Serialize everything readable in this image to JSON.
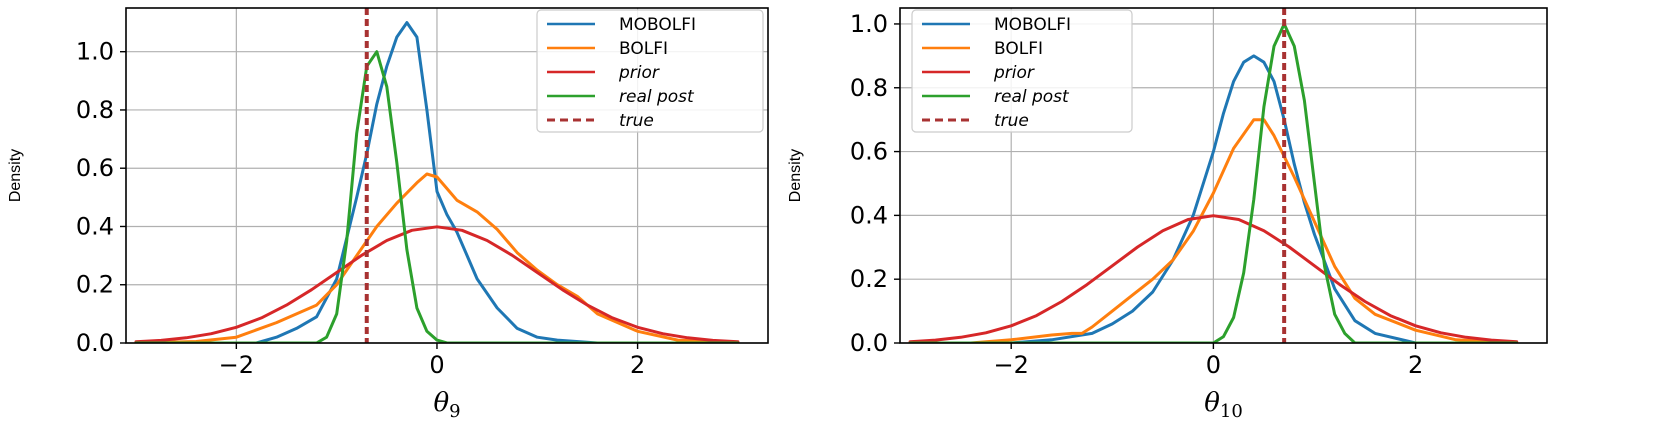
{
  "colors": {
    "MOBOLFI": "#1f77b4",
    "BOLFI": "#ff7f0e",
    "prior": "#d62728",
    "real post": "#2ca02c",
    "true": "#a83232"
  },
  "chart_data": [
    {
      "type": "line",
      "xlabel": "θ9",
      "ylabel": "Density",
      "xlim": [
        -3.1,
        3.3
      ],
      "ylim": [
        0,
        1.15
      ],
      "xticks": [
        -2,
        0,
        2
      ],
      "xtick_labels": [
        "−2",
        "0",
        "2"
      ],
      "yticks": [
        0.0,
        0.2,
        0.4,
        0.6,
        0.8,
        1.0
      ],
      "ytick_labels": [
        "0.0",
        "0.2",
        "0.4",
        "0.6",
        "0.8",
        "1.0"
      ],
      "grid": true,
      "legend_position": "top-right",
      "true_value": -0.7,
      "series": [
        {
          "name": "MOBOLFI",
          "x": [
            -3.0,
            -1.8,
            -1.6,
            -1.4,
            -1.2,
            -1.0,
            -0.8,
            -0.7,
            -0.6,
            -0.5,
            -0.4,
            -0.3,
            -0.2,
            -0.1,
            0.0,
            0.1,
            0.2,
            0.3,
            0.4,
            0.6,
            0.8,
            1.0,
            1.2,
            1.6,
            3.0
          ],
          "y": [
            0.0,
            0.0,
            0.02,
            0.05,
            0.09,
            0.22,
            0.5,
            0.65,
            0.82,
            0.95,
            1.05,
            1.1,
            1.05,
            0.8,
            0.52,
            0.44,
            0.38,
            0.3,
            0.22,
            0.12,
            0.05,
            0.02,
            0.01,
            0.0,
            0.0
          ]
        },
        {
          "name": "BOLFI",
          "x": [
            -3.0,
            -2.4,
            -2.0,
            -1.6,
            -1.4,
            -1.2,
            -1.0,
            -0.8,
            -0.6,
            -0.4,
            -0.2,
            -0.1,
            0.0,
            0.1,
            0.2,
            0.4,
            0.6,
            0.8,
            1.0,
            1.2,
            1.4,
            1.6,
            2.0,
            2.4,
            3.0
          ],
          "y": [
            0.0,
            0.005,
            0.02,
            0.07,
            0.1,
            0.13,
            0.2,
            0.3,
            0.4,
            0.48,
            0.55,
            0.58,
            0.57,
            0.53,
            0.49,
            0.45,
            0.39,
            0.31,
            0.25,
            0.2,
            0.16,
            0.1,
            0.04,
            0.01,
            0.0
          ]
        },
        {
          "name": "prior",
          "x": [
            -3.0,
            -2.75,
            -2.5,
            -2.25,
            -2.0,
            -1.75,
            -1.5,
            -1.25,
            -1.0,
            -0.75,
            -0.5,
            -0.25,
            0.0,
            0.25,
            0.5,
            0.75,
            1.0,
            1.25,
            1.5,
            1.75,
            2.0,
            2.25,
            2.5,
            2.75,
            3.0
          ],
          "y": [
            0.004,
            0.009,
            0.018,
            0.032,
            0.054,
            0.086,
            0.13,
            0.183,
            0.242,
            0.301,
            0.352,
            0.387,
            0.399,
            0.387,
            0.352,
            0.301,
            0.242,
            0.183,
            0.13,
            0.086,
            0.054,
            0.032,
            0.018,
            0.009,
            0.004
          ]
        },
        {
          "name": "real post",
          "x": [
            -3.0,
            -1.2,
            -1.1,
            -1.0,
            -0.9,
            -0.8,
            -0.7,
            -0.6,
            -0.5,
            -0.4,
            -0.3,
            -0.2,
            -0.1,
            0.0,
            0.1,
            0.2,
            3.0
          ],
          "y": [
            0.0,
            0.0,
            0.02,
            0.1,
            0.35,
            0.72,
            0.95,
            1.0,
            0.88,
            0.62,
            0.32,
            0.12,
            0.04,
            0.01,
            0.0,
            0.0,
            0.0
          ]
        }
      ]
    },
    {
      "type": "line",
      "xlabel": "θ10",
      "ylabel": "Density",
      "xlim": [
        -3.1,
        3.3
      ],
      "ylim": [
        0,
        1.05
      ],
      "xticks": [
        -2,
        0,
        2
      ],
      "xtick_labels": [
        "−2",
        "0",
        "2"
      ],
      "yticks": [
        0.0,
        0.2,
        0.4,
        0.6,
        0.8,
        1.0
      ],
      "ytick_labels": [
        "0.0",
        "0.2",
        "0.4",
        "0.6",
        "0.8",
        "1.0"
      ],
      "grid": true,
      "legend_position": "top-left",
      "true_value": 0.7,
      "series": [
        {
          "name": "MOBOLFI",
          "x": [
            -3.0,
            -2.0,
            -1.6,
            -1.2,
            -1.0,
            -0.8,
            -0.6,
            -0.4,
            -0.2,
            0.0,
            0.1,
            0.2,
            0.3,
            0.4,
            0.5,
            0.6,
            0.7,
            0.8,
            0.9,
            1.0,
            1.2,
            1.4,
            1.6,
            2.0,
            3.0
          ],
          "y": [
            0.0,
            0.0,
            0.01,
            0.03,
            0.06,
            0.1,
            0.16,
            0.26,
            0.4,
            0.6,
            0.72,
            0.82,
            0.88,
            0.9,
            0.88,
            0.82,
            0.7,
            0.56,
            0.44,
            0.34,
            0.17,
            0.07,
            0.03,
            0.0,
            0.0
          ]
        },
        {
          "name": "BOLFI",
          "x": [
            -3.0,
            -2.4,
            -2.0,
            -1.6,
            -1.4,
            -1.3,
            -1.2,
            -1.0,
            -0.8,
            -0.6,
            -0.4,
            -0.2,
            0.0,
            0.2,
            0.4,
            0.5,
            0.6,
            0.8,
            1.0,
            1.2,
            1.4,
            1.6,
            2.0,
            2.4,
            3.0
          ],
          "y": [
            0.0,
            0.0,
            0.01,
            0.025,
            0.03,
            0.03,
            0.05,
            0.1,
            0.15,
            0.2,
            0.26,
            0.35,
            0.47,
            0.61,
            0.7,
            0.7,
            0.65,
            0.52,
            0.38,
            0.24,
            0.14,
            0.09,
            0.04,
            0.01,
            0.0
          ]
        },
        {
          "name": "prior",
          "x": [
            -3.0,
            -2.75,
            -2.5,
            -2.25,
            -2.0,
            -1.75,
            -1.5,
            -1.25,
            -1.0,
            -0.75,
            -0.5,
            -0.25,
            0.0,
            0.25,
            0.5,
            0.75,
            1.0,
            1.25,
            1.5,
            1.75,
            2.0,
            2.25,
            2.5,
            2.75,
            3.0
          ],
          "y": [
            0.004,
            0.009,
            0.018,
            0.032,
            0.054,
            0.086,
            0.13,
            0.183,
            0.242,
            0.301,
            0.352,
            0.387,
            0.399,
            0.387,
            0.352,
            0.301,
            0.242,
            0.183,
            0.13,
            0.086,
            0.054,
            0.032,
            0.018,
            0.009,
            0.004
          ]
        },
        {
          "name": "real post",
          "x": [
            -3.0,
            0.0,
            0.1,
            0.2,
            0.3,
            0.4,
            0.5,
            0.6,
            0.7,
            0.8,
            0.9,
            1.0,
            1.1,
            1.2,
            1.3,
            1.4,
            3.0
          ],
          "y": [
            0.0,
            0.0,
            0.02,
            0.08,
            0.22,
            0.45,
            0.74,
            0.93,
            1.0,
            0.93,
            0.76,
            0.5,
            0.24,
            0.09,
            0.03,
            0.0,
            0.0
          ]
        }
      ]
    }
  ],
  "legend": {
    "entries": [
      {
        "label": "MOBOLFI",
        "style": "solid",
        "italic": false
      },
      {
        "label": "BOLFI",
        "style": "solid",
        "italic": false
      },
      {
        "label": "prior",
        "style": "solid",
        "italic": true
      },
      {
        "label": "real post",
        "style": "solid",
        "italic": true
      },
      {
        "label": "true",
        "style": "dashed",
        "italic": true
      }
    ]
  }
}
